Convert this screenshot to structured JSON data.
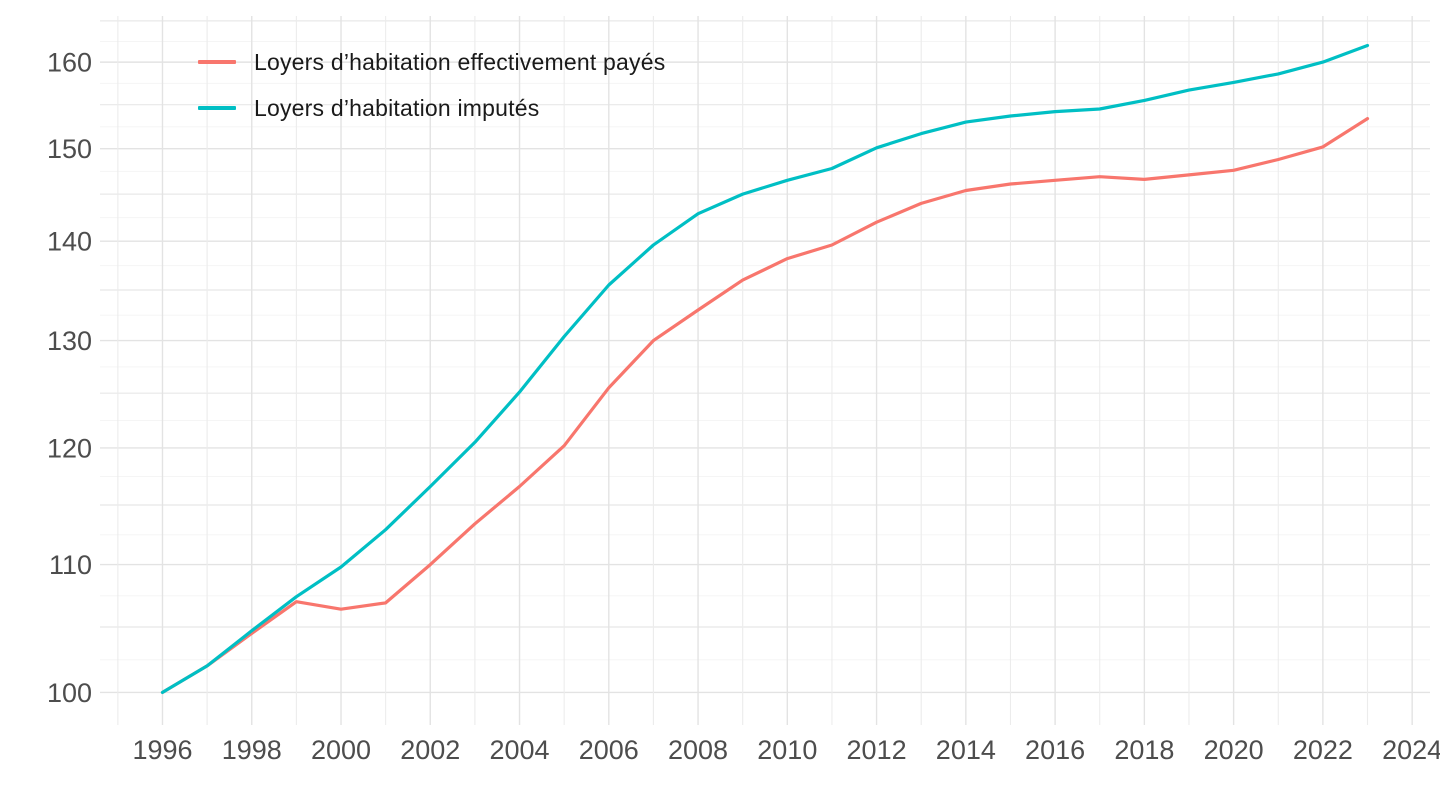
{
  "chart_data": {
    "type": "line",
    "title": "",
    "xlabel": "",
    "ylabel": "",
    "x": [
      1996,
      1997,
      1998,
      1999,
      2000,
      2001,
      2002,
      2003,
      2004,
      2005,
      2006,
      2007,
      2008,
      2009,
      2010,
      2011,
      2012,
      2013,
      2014,
      2015,
      2016,
      2017,
      2018,
      2019,
      2020,
      2021,
      2022,
      2023
    ],
    "series": [
      {
        "name": "Loyers d’habitation effectivement payés",
        "slug": "loyers-effectivement-payes",
        "color": "#F8766D",
        "values": [
          100,
          102,
          104.5,
          107,
          106.4,
          106.9,
          110,
          113.4,
          116.6,
          120.2,
          125.5,
          130,
          133,
          136,
          138.2,
          139.6,
          142,
          144,
          145.4,
          146.1,
          146.5,
          146.9,
          146.6,
          147.1,
          147.6,
          148.8,
          150.2,
          153.4
        ]
      },
      {
        "name": "Loyers d’habitation imputés",
        "slug": "loyers-imputes",
        "color": "#00BFC4",
        "values": [
          100,
          102,
          104.7,
          107.4,
          109.8,
          112.9,
          116.6,
          120.5,
          125.1,
          130.4,
          135.5,
          139.6,
          142.9,
          145,
          146.5,
          147.8,
          150.1,
          151.7,
          153,
          153.7,
          154.2,
          154.5,
          155.5,
          156.7,
          157.6,
          158.6,
          160,
          162
        ]
      }
    ],
    "x_ticks": [
      1996,
      1998,
      2000,
      2002,
      2004,
      2006,
      2008,
      2010,
      2012,
      2014,
      2016,
      2018,
      2020,
      2022,
      2024
    ],
    "y_ticks": [
      100,
      110,
      120,
      130,
      140,
      150,
      160
    ],
    "y_scale": "log",
    "xlim": [
      1994.6,
      2024.4
    ],
    "ylim": [
      97.6,
      165.6
    ],
    "grid": true,
    "legend_position": "top-left-inside",
    "style": {
      "background": "#FFFFFF",
      "grid_major": "#E3E3E3",
      "grid_mid": "#E8E8E8",
      "grid_minor": "#F5F5F5",
      "axis_text_color": "#4D4D4D"
    }
  }
}
